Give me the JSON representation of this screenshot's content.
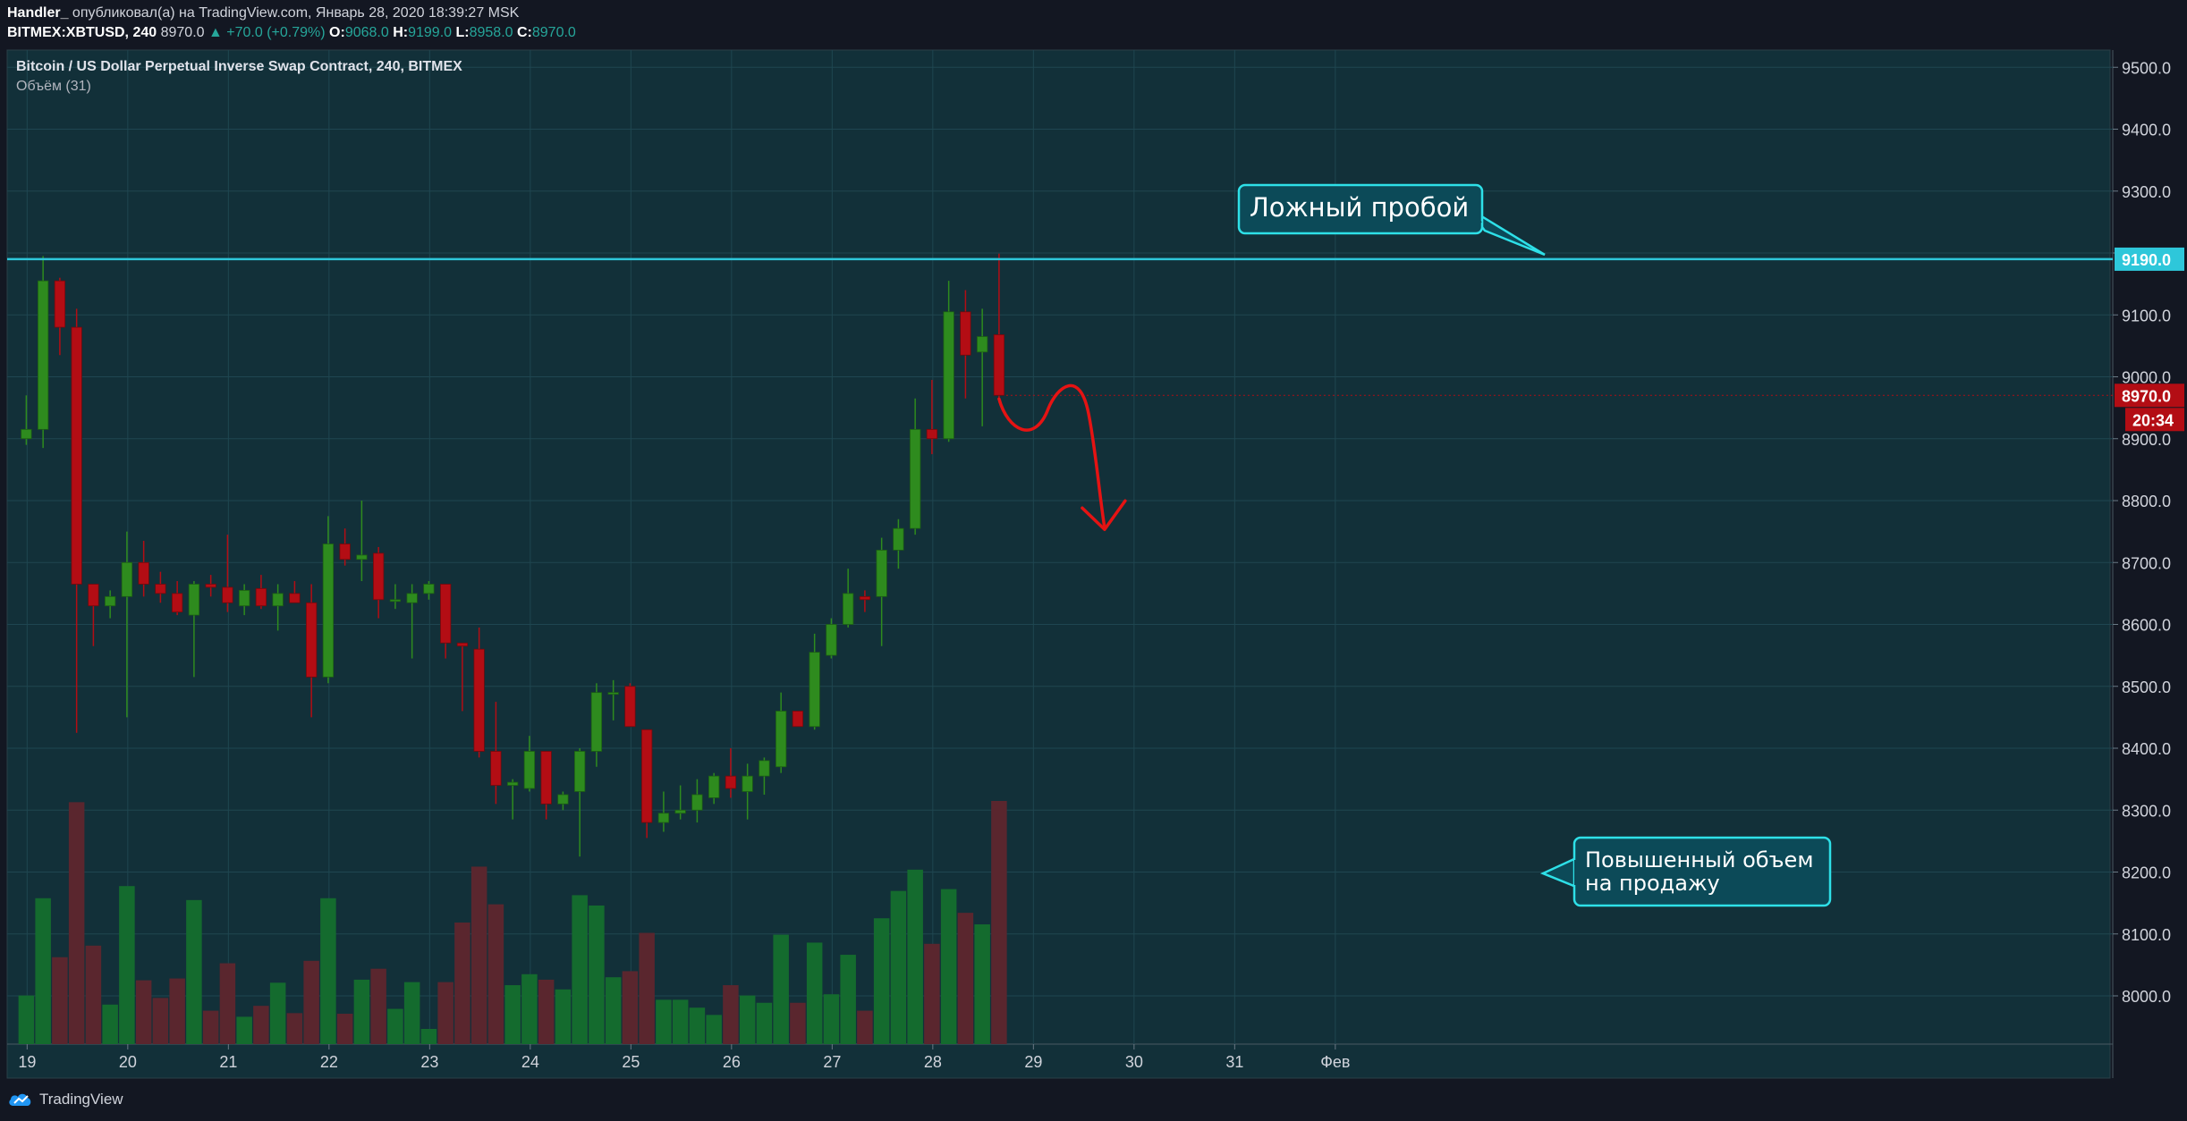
{
  "header": {
    "publisher": "Handler_",
    "published_text": "опубликовал(а) на TradingView.com, Январь 28, 2020 18:39:27 MSK",
    "symbol": "BITMEX:XBTUSD, 240",
    "last": "8970.0",
    "change": "+70.0 (+0.79%)",
    "o_label": "O:",
    "o_value": "9068.0",
    "h_label": "H:",
    "h_value": "9199.0",
    "l_label": "L:",
    "l_value": "8958.0",
    "c_label": "C:",
    "c_value": "8970.0"
  },
  "legend": {
    "title": "Bitcoin / US Dollar Perpetual Inverse Swap Contract, 240, BITMEX",
    "volume": "Объём (31)"
  },
  "annotations": {
    "false_breakout": "Ложный пробой",
    "volume_note_line1": "Повышенный объем",
    "volume_note_line2": "на продажу"
  },
  "price_labels": {
    "level": "9190.0",
    "last": "8970.0",
    "countdown": "20:34"
  },
  "footer": {
    "brand": "TradingView"
  },
  "colors": {
    "background": "#123039",
    "up": "#2e8b1e",
    "down": "#b30d14",
    "vol_up": "#146b2e",
    "vol_down": "#5a262e",
    "level_line": "#2ec7da",
    "arrow": "#e51313"
  },
  "chart_data": {
    "type": "candlestick",
    "timeframe": "240",
    "ylim": [
      7920,
      9540
    ],
    "y_ticks": [
      8000,
      8100,
      8200,
      8300,
      8400,
      8500,
      8600,
      8700,
      8800,
      8900,
      9000,
      9100,
      9200,
      9300,
      9400,
      9500
    ],
    "y_tick_labels": [
      "8000.0",
      "8100.0",
      "8200.0",
      "8300.0",
      "8400.0",
      "8500.0",
      "8600.0",
      "8700.0",
      "8800.0",
      "8900.0",
      "9000.0",
      "9100.0",
      "9200.0",
      "9300.0",
      "9400.0",
      "9500.0"
    ],
    "x_tick_labels": [
      "19",
      "20",
      "21",
      "22",
      "23",
      "24",
      "25",
      "26",
      "27",
      "28",
      "29",
      "30",
      "31",
      "Фев"
    ],
    "x_tick_index": [
      0.05,
      6.05,
      12.05,
      18.05,
      24.05,
      30.05,
      36.05,
      42.05,
      48.05,
      54.05,
      60.05,
      66.05,
      72.05,
      78.05
    ],
    "horizontal_level": 9190,
    "last_price": 8970,
    "candles": [
      {
        "o": 8900,
        "h": 8970,
        "l": 8890,
        "c": 8915,
        "v": 80
      },
      {
        "o": 8915,
        "h": 9195,
        "l": 8885,
        "c": 9155,
        "v": 240
      },
      {
        "o": 9155,
        "h": 9160,
        "l": 9035,
        "c": 9080,
        "v": 143
      },
      {
        "o": 9080,
        "h": 9110,
        "l": 8425,
        "c": 8665,
        "v": 398
      },
      {
        "o": 8665,
        "h": 8665,
        "l": 8565,
        "c": 8630,
        "v": 162
      },
      {
        "o": 8630,
        "h": 8655,
        "l": 8610,
        "c": 8645,
        "v": 65
      },
      {
        "o": 8645,
        "h": 8750,
        "l": 8450,
        "c": 8700,
        "v": 260
      },
      {
        "o": 8700,
        "h": 8735,
        "l": 8645,
        "c": 8665,
        "v": 105
      },
      {
        "o": 8665,
        "h": 8685,
        "l": 8635,
        "c": 8650,
        "v": 76
      },
      {
        "o": 8650,
        "h": 8670,
        "l": 8615,
        "c": 8620,
        "v": 108
      },
      {
        "o": 8615,
        "h": 8670,
        "l": 8515,
        "c": 8665,
        "v": 237
      },
      {
        "o": 8665,
        "h": 8680,
        "l": 8645,
        "c": 8660,
        "v": 55
      },
      {
        "o": 8660,
        "h": 8745,
        "l": 8620,
        "c": 8635,
        "v": 133
      },
      {
        "o": 8630,
        "h": 8665,
        "l": 8615,
        "c": 8655,
        "v": 45
      },
      {
        "o": 8658,
        "h": 8680,
        "l": 8625,
        "c": 8630,
        "v": 63
      },
      {
        "o": 8630,
        "h": 8665,
        "l": 8590,
        "c": 8650,
        "v": 101
      },
      {
        "o": 8650,
        "h": 8670,
        "l": 8635,
        "c": 8635,
        "v": 51
      },
      {
        "o": 8635,
        "h": 8665,
        "l": 8450,
        "c": 8515,
        "v": 137
      },
      {
        "o": 8515,
        "h": 8775,
        "l": 8505,
        "c": 8730,
        "v": 240
      },
      {
        "o": 8730,
        "h": 8755,
        "l": 8695,
        "c": 8705,
        "v": 50
      },
      {
        "o": 8705,
        "h": 8800,
        "l": 8670,
        "c": 8712,
        "v": 106
      },
      {
        "o": 8715,
        "h": 8725,
        "l": 8610,
        "c": 8640,
        "v": 124
      },
      {
        "o": 8640,
        "h": 8665,
        "l": 8625,
        "c": 8640,
        "v": 58
      },
      {
        "o": 8635,
        "h": 8665,
        "l": 8545,
        "c": 8650,
        "v": 102
      },
      {
        "o": 8650,
        "h": 8670,
        "l": 8640,
        "c": 8665,
        "v": 25
      },
      {
        "o": 8665,
        "h": 8665,
        "l": 8545,
        "c": 8570,
        "v": 102
      },
      {
        "o": 8570,
        "h": 8570,
        "l": 8460,
        "c": 8565,
        "v": 200
      },
      {
        "o": 8560,
        "h": 8595,
        "l": 8385,
        "c": 8395,
        "v": 292
      },
      {
        "o": 8395,
        "h": 8475,
        "l": 8310,
        "c": 8340,
        "v": 230
      },
      {
        "o": 8340,
        "h": 8350,
        "l": 8285,
        "c": 8345,
        "v": 97
      },
      {
        "o": 8335,
        "h": 8420,
        "l": 8330,
        "c": 8395,
        "v": 115
      },
      {
        "o": 8395,
        "h": 8395,
        "l": 8285,
        "c": 8310,
        "v": 106
      },
      {
        "o": 8310,
        "h": 8330,
        "l": 8300,
        "c": 8325,
        "v": 90
      },
      {
        "o": 8330,
        "h": 8400,
        "l": 8225,
        "c": 8395,
        "v": 245
      },
      {
        "o": 8395,
        "h": 8505,
        "l": 8370,
        "c": 8490,
        "v": 228
      },
      {
        "o": 8490,
        "h": 8510,
        "l": 8445,
        "c": 8490,
        "v": 110
      },
      {
        "o": 8500,
        "h": 8505,
        "l": 8445,
        "c": 8435,
        "v": 120
      },
      {
        "o": 8430,
        "h": 8430,
        "l": 8255,
        "c": 8280,
        "v": 183
      },
      {
        "o": 8280,
        "h": 8330,
        "l": 8265,
        "c": 8295,
        "v": 73
      },
      {
        "o": 8295,
        "h": 8340,
        "l": 8285,
        "c": 8300,
        "v": 73
      },
      {
        "o": 8300,
        "h": 8350,
        "l": 8280,
        "c": 8325,
        "v": 60
      },
      {
        "o": 8320,
        "h": 8360,
        "l": 8310,
        "c": 8355,
        "v": 48
      },
      {
        "o": 8355,
        "h": 8400,
        "l": 8320,
        "c": 8335,
        "v": 97
      },
      {
        "o": 8330,
        "h": 8375,
        "l": 8285,
        "c": 8355,
        "v": 80
      },
      {
        "o": 8355,
        "h": 8385,
        "l": 8325,
        "c": 8380,
        "v": 68
      },
      {
        "o": 8370,
        "h": 8490,
        "l": 8360,
        "c": 8460,
        "v": 180
      },
      {
        "o": 8460,
        "h": 8460,
        "l": 8435,
        "c": 8435,
        "v": 68
      },
      {
        "o": 8435,
        "h": 8585,
        "l": 8430,
        "c": 8555,
        "v": 167
      },
      {
        "o": 8550,
        "h": 8610,
        "l": 8545,
        "c": 8600,
        "v": 82
      },
      {
        "o": 8600,
        "h": 8690,
        "l": 8595,
        "c": 8650,
        "v": 147
      },
      {
        "o": 8645,
        "h": 8655,
        "l": 8620,
        "c": 8640,
        "v": 55
      },
      {
        "o": 8645,
        "h": 8740,
        "l": 8565,
        "c": 8720,
        "v": 207
      },
      {
        "o": 8720,
        "h": 8770,
        "l": 8690,
        "c": 8755,
        "v": 252
      },
      {
        "o": 8755,
        "h": 8965,
        "l": 8745,
        "c": 8915,
        "v": 287
      },
      {
        "o": 8915,
        "h": 8995,
        "l": 8875,
        "c": 8900,
        "v": 165
      },
      {
        "o": 8900,
        "h": 9155,
        "l": 8895,
        "c": 9105,
        "v": 255
      },
      {
        "o": 9105,
        "h": 9140,
        "l": 8965,
        "c": 9035,
        "v": 216
      },
      {
        "o": 9040,
        "h": 9110,
        "l": 8920,
        "c": 9065,
        "v": 197
      },
      {
        "o": 9068,
        "h": 9199,
        "l": 8958,
        "c": 8970,
        "v": 400
      }
    ]
  }
}
